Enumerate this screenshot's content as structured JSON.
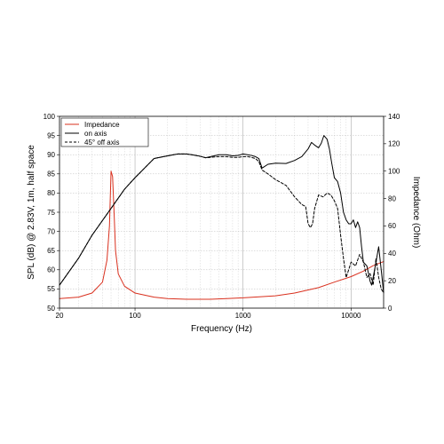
{
  "chart_data": {
    "type": "line",
    "title": "",
    "xlabel": "Frequency (Hz)",
    "ylabel": "SPL (dB) @ 2.83V, 1m, half space",
    "y2label": "Impedance (Ohm)",
    "xscale": "log",
    "xlim": [
      20,
      20000
    ],
    "ylim": [
      50,
      100
    ],
    "y2lim": [
      0,
      140
    ],
    "x_ticks": [
      "20",
      "100",
      "1000",
      "10000"
    ],
    "y_ticks": [
      "50",
      "55",
      "60",
      "65",
      "70",
      "75",
      "80",
      "85",
      "90",
      "95",
      "100"
    ],
    "y2_ticks": [
      "0",
      "20",
      "40",
      "60",
      "80",
      "100",
      "120",
      "140"
    ],
    "grid": true,
    "legend_position": "top-left",
    "series": [
      {
        "name": "Impedance",
        "axis": "right",
        "color": "#d9301e",
        "dash": "solid",
        "x": [
          20,
          30,
          40,
          50,
          55,
          58,
          60,
          62,
          64,
          66,
          70,
          80,
          100,
          150,
          200,
          300,
          500,
          700,
          1000,
          2000,
          3000,
          5000,
          7000,
          10000,
          13000,
          16000,
          20000
        ],
        "values": [
          7,
          8,
          11,
          19,
          35,
          60,
          100,
          96,
          70,
          42,
          25,
          16,
          11,
          8,
          7,
          6.5,
          6.5,
          7,
          7.5,
          9,
          11,
          15,
          19,
          23,
          27,
          31,
          34
        ]
      },
      {
        "name": "on axis",
        "axis": "left",
        "color": "#000000",
        "dash": "solid",
        "x": [
          20,
          30,
          40,
          60,
          80,
          100,
          150,
          200,
          250,
          300,
          350,
          400,
          450,
          500,
          600,
          700,
          800,
          900,
          1000,
          1100,
          1200,
          1300,
          1400,
          1500,
          1700,
          2000,
          2500,
          3000,
          3500,
          4000,
          4300,
          4600,
          5000,
          5300,
          5600,
          6000,
          6300,
          6600,
          7000,
          7500,
          8000,
          8500,
          9000,
          9500,
          10000,
          10500,
          11000,
          11500,
          12000,
          12500,
          13000,
          14000,
          15000,
          15500,
          16000,
          17000,
          18000,
          19000,
          20000
        ],
        "values": [
          56,
          63,
          69,
          76,
          81,
          84,
          89,
          89.7,
          90.2,
          90.2,
          89.9,
          89.6,
          89.2,
          89.5,
          90,
          90,
          89.7,
          89.8,
          90.2,
          90,
          89.8,
          89.5,
          89,
          86.5,
          87.5,
          87.8,
          87.7,
          88.5,
          89.5,
          91.5,
          93.2,
          92.5,
          91.8,
          93,
          95,
          94,
          91.5,
          88,
          84,
          83,
          80,
          75,
          73,
          72,
          72,
          73,
          71,
          72.5,
          71,
          66,
          62,
          61,
          57,
          56,
          58,
          62,
          66,
          60,
          54
        ]
      },
      {
        "name": "45° off axis",
        "axis": "left",
        "color": "#000000",
        "dash": "dashed",
        "x": [
          20,
          30,
          40,
          60,
          80,
          100,
          150,
          200,
          250,
          300,
          350,
          400,
          450,
          500,
          600,
          700,
          800,
          900,
          1000,
          1100,
          1200,
          1300,
          1400,
          1500,
          1700,
          2000,
          2500,
          3000,
          3500,
          3800,
          4000,
          4200,
          4400,
          4600,
          5000,
          5500,
          6000,
          6500,
          7000,
          7500,
          8000,
          8500,
          9000,
          9500,
          10000,
          11000,
          12000,
          13000,
          14000,
          15000,
          16000,
          17000,
          18000,
          19000,
          20000
        ],
        "values": [
          56,
          63,
          69,
          76,
          81,
          84,
          89,
          89.7,
          90.2,
          90.2,
          89.9,
          89.6,
          89.2,
          89.3,
          89.5,
          89.5,
          89.3,
          89.3,
          89.5,
          89.5,
          89.3,
          89,
          88.2,
          86,
          85,
          83.5,
          82,
          79,
          77,
          76.5,
          72,
          71,
          72,
          76,
          79.5,
          79,
          80,
          79.5,
          78,
          76,
          69,
          63,
          58,
          60,
          62,
          61,
          64,
          62,
          58,
          59,
          56,
          63,
          58,
          55,
          54
        ]
      }
    ]
  }
}
